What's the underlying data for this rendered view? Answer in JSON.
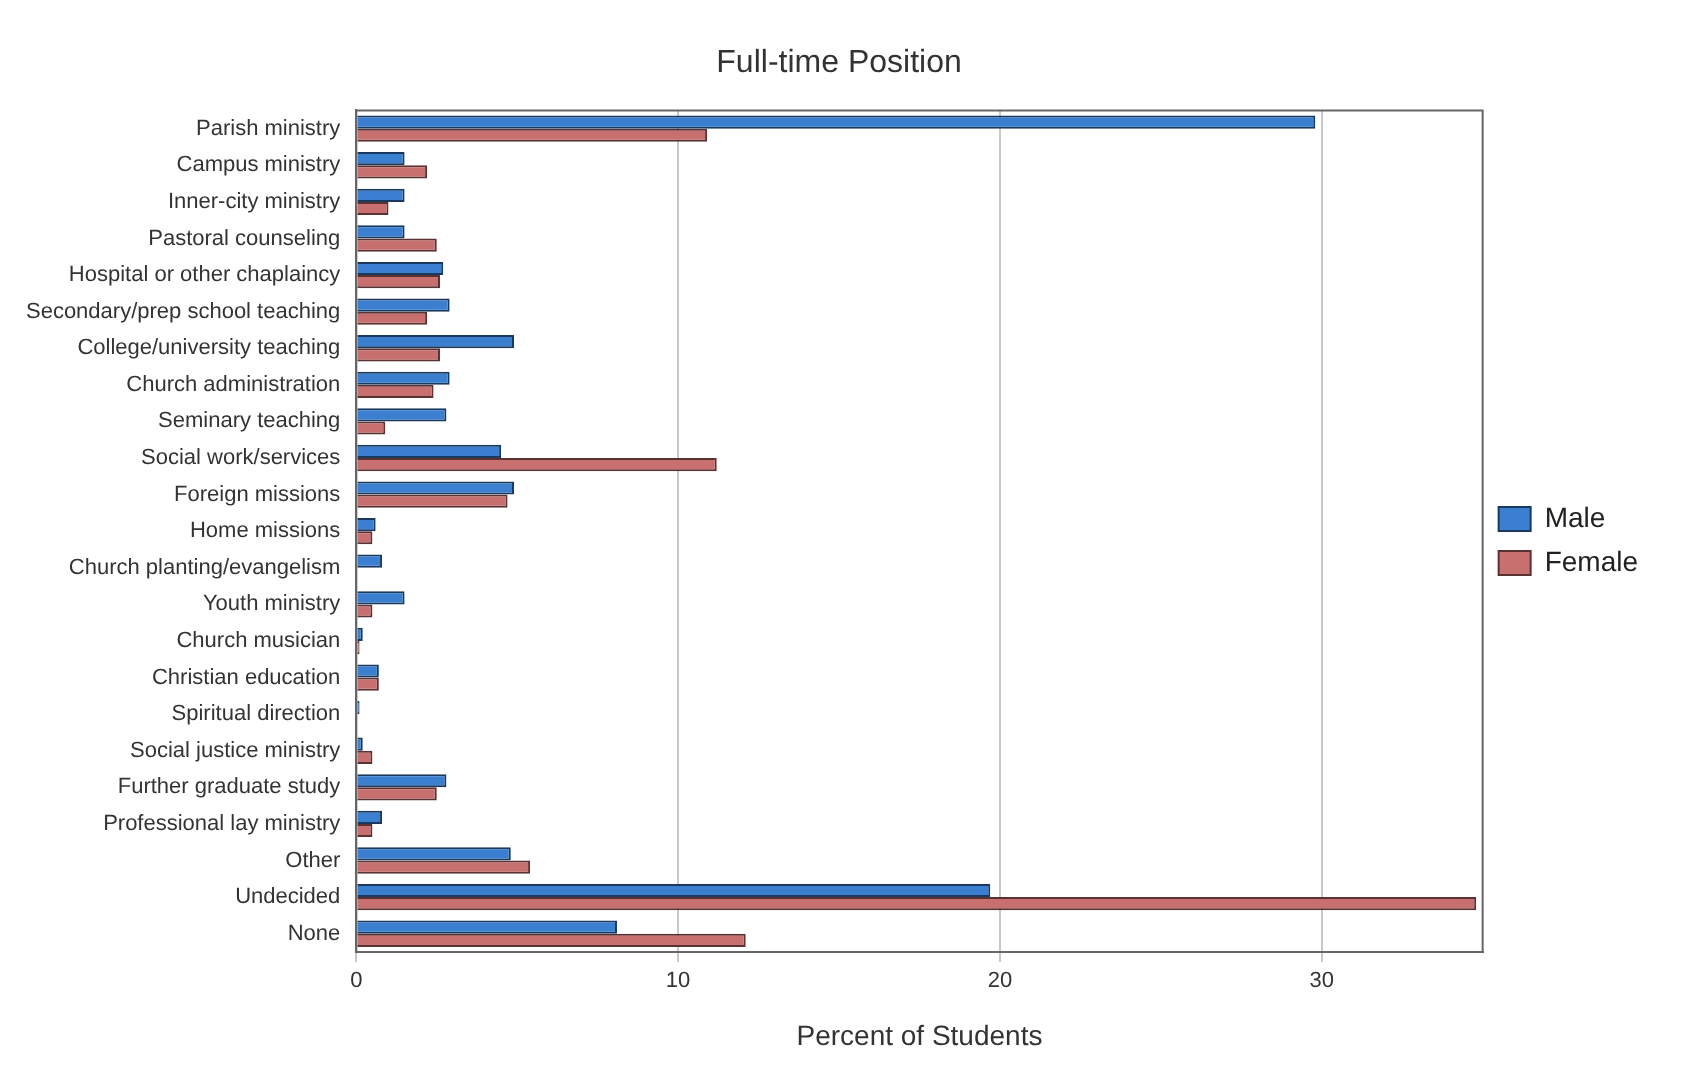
{
  "chart_data": {
    "type": "bar",
    "orientation": "horizontal",
    "title": "Full-time Position",
    "xlabel": "Percent of Students",
    "categories": [
      "Parish ministry",
      "Campus ministry",
      "Inner-city ministry",
      "Pastoral counseling",
      "Hospital or other chaplaincy",
      "Secondary/prep school teaching",
      "College/university teaching",
      "Church administration",
      "Seminary teaching",
      "Social work/services",
      "Foreign missions",
      "Home missions",
      "Church planting/evangelism",
      "Youth ministry",
      "Church musician",
      "Christian education",
      "Spiritual direction",
      "Social justice ministry",
      "Further graduate study",
      "Professional lay ministry",
      "Other",
      "Undecided",
      "None"
    ],
    "series": [
      {
        "name": "Male",
        "color": "#3a7fd0",
        "values": [
          29.8,
          1.5,
          1.5,
          1.5,
          2.7,
          2.9,
          4.9,
          2.9,
          2.8,
          4.5,
          4.9,
          0.6,
          0.8,
          1.5,
          0.2,
          0.7,
          0.1,
          0.2,
          2.8,
          0.8,
          4.8,
          19.7,
          8.1
        ]
      },
      {
        "name": "Female",
        "color": "#c87070",
        "values": [
          10.9,
          2.2,
          1.0,
          2.5,
          2.6,
          2.2,
          2.6,
          2.4,
          0.9,
          11.2,
          4.7,
          0.5,
          0,
          0.5,
          0.1,
          0.7,
          0,
          0.5,
          2.5,
          0.5,
          5.4,
          34.8,
          12.1
        ]
      }
    ],
    "xlim": [
      0,
      35
    ],
    "xticks": [
      0,
      10,
      20,
      30
    ],
    "grid": "x",
    "legend": "right"
  }
}
